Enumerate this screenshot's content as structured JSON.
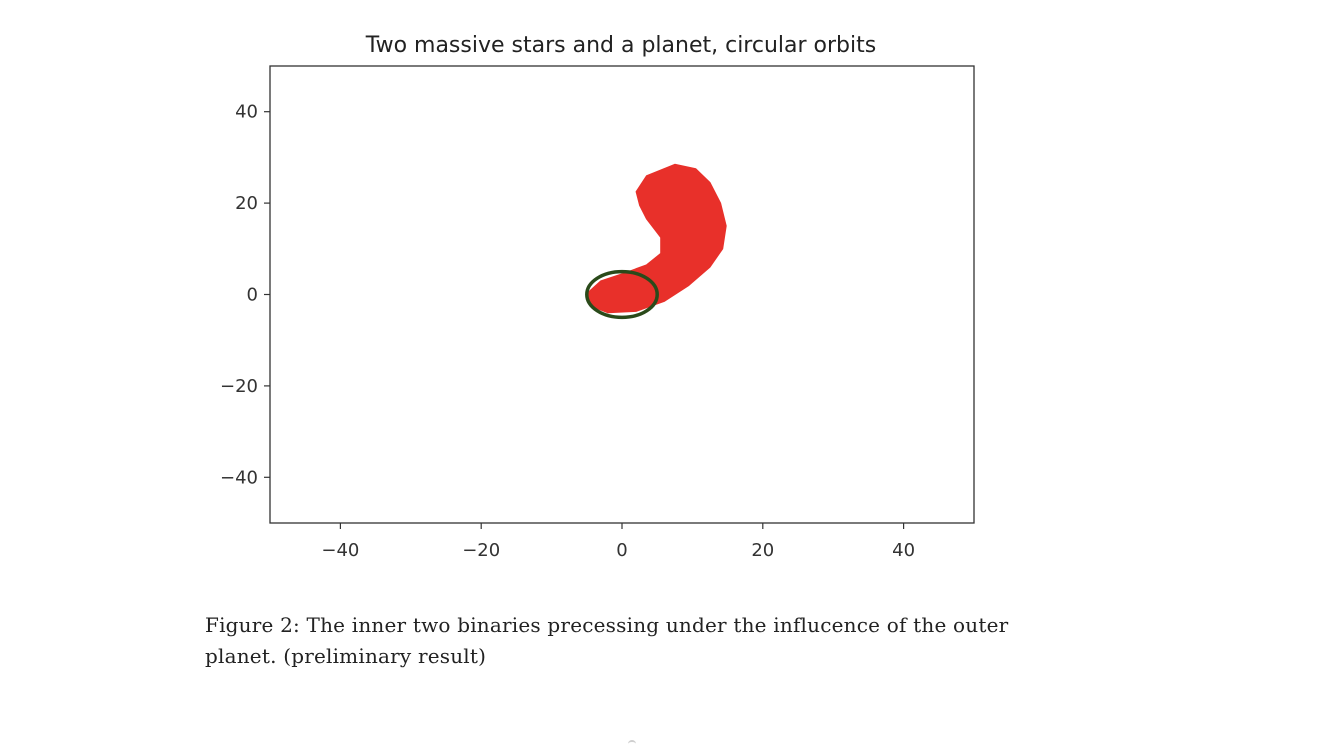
{
  "chart_data": {
    "type": "scatter",
    "title": "Two massive stars and a planet, circular orbits",
    "xlabel": "",
    "ylabel": "",
    "xlim": [
      -50,
      50
    ],
    "ylim": [
      -50,
      50
    ],
    "xticks": [
      -40,
      -20,
      0,
      20,
      40
    ],
    "yticks": [
      -40,
      -20,
      0,
      20,
      40
    ],
    "xtick_labels": [
      "−40",
      "−20",
      "0",
      "20",
      "40"
    ],
    "ytick_labels": [
      "40",
      "20",
      "0",
      "−20",
      "−40"
    ],
    "grid": false,
    "series": [
      {
        "color": "#e8302a",
        "description_kind": "filled_region",
        "outline": [
          [
            7.5,
            28.5
          ],
          [
            10.5,
            27.5
          ],
          [
            12.5,
            24.5
          ],
          [
            14.0,
            20.0
          ],
          [
            14.8,
            15.0
          ],
          [
            14.3,
            10.0
          ],
          [
            12.5,
            6.0
          ],
          [
            9.5,
            2.0
          ],
          [
            6.0,
            -1.5
          ],
          [
            2.0,
            -3.7
          ],
          [
            -2.0,
            -4.0
          ],
          [
            -4.5,
            -2.5
          ],
          [
            -4.8,
            0.5
          ],
          [
            -3.0,
            3.0
          ],
          [
            0.0,
            4.5
          ],
          [
            3.5,
            6.5
          ],
          [
            5.5,
            9.0
          ],
          [
            5.5,
            12.5
          ],
          [
            3.5,
            16.5
          ],
          [
            2.5,
            19.5
          ],
          [
            2.0,
            22.5
          ],
          [
            3.5,
            26.0
          ],
          [
            7.5,
            28.5
          ]
        ]
      },
      {
        "color": "#2a4a1a",
        "description_kind": "ellipse_orbit",
        "center": [
          0,
          0
        ],
        "radii": [
          5,
          5
        ]
      }
    ]
  },
  "caption": {
    "text": "Figure 2: The inner two binaries precessing under the influcence of the outer planet. (preliminary result)"
  }
}
